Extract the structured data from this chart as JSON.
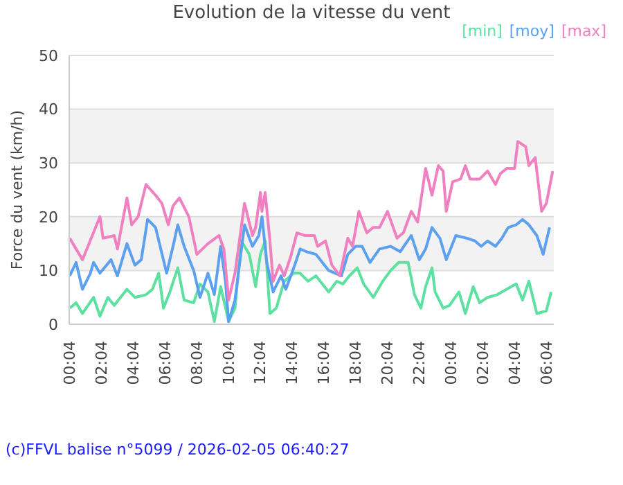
{
  "chart_data": {
    "type": "line",
    "title": "Evolution de la vitesse du vent",
    "ylabel": "Force du vent (km/h)",
    "legend": "top right",
    "grid": "y",
    "marker": "none",
    "line_style": "solid",
    "xlim": [
      "2026-02-04T00:04",
      "2026-02-05T06:34"
    ],
    "xticks": [
      {
        "value": "2026-02-04T00:04",
        "label": "00:04"
      },
      {
        "value": "2026-02-04T02:04",
        "label": "02:04"
      },
      {
        "value": "2026-02-04T04:04",
        "label": "04:04"
      },
      {
        "value": "2026-02-04T06:04",
        "label": "06:04"
      },
      {
        "value": "2026-02-04T08:04",
        "label": "08:04"
      },
      {
        "value": "2026-02-04T10:04",
        "label": "10:04"
      },
      {
        "value": "2026-02-04T12:04",
        "label": "12:04"
      },
      {
        "value": "2026-02-04T14:04",
        "label": "14:04"
      },
      {
        "value": "2026-02-04T16:04",
        "label": "16:04"
      },
      {
        "value": "2026-02-04T18:04",
        "label": "18:04"
      },
      {
        "value": "2026-02-04T20:04",
        "label": "20:04"
      },
      {
        "value": "2026-02-04T22:04",
        "label": "22:04"
      },
      {
        "value": "2026-02-05T00:04",
        "label": "00:04"
      },
      {
        "value": "2026-02-05T02:04",
        "label": "02:04"
      },
      {
        "value": "2026-02-05T04:04",
        "label": "04:04"
      },
      {
        "value": "2026-02-05T06:04",
        "label": "06:04"
      }
    ],
    "ylim": [
      0,
      50
    ],
    "yticks": [
      0,
      10,
      20,
      30,
      40,
      50
    ],
    "annotations": [
      "(c)FFVL balise n°5099 / 2026-02-05 06:40:27"
    ],
    "series": [
      {
        "name": "[min]",
        "color": "#5ee0a0",
        "x": [
          "2026-02-04T00:06",
          "2026-02-04T00:30",
          "2026-02-04T00:54",
          "2026-02-04T01:36",
          "2026-02-04T02:00",
          "2026-02-04T02:30",
          "2026-02-04T02:54",
          "2026-02-04T03:42",
          "2026-02-04T04:12",
          "2026-02-04T04:54",
          "2026-02-04T05:18",
          "2026-02-04T05:42",
          "2026-02-04T06:00",
          "2026-02-04T06:24",
          "2026-02-04T06:54",
          "2026-02-04T07:18",
          "2026-02-04T07:54",
          "2026-02-04T08:18",
          "2026-02-04T08:48",
          "2026-02-04T09:12",
          "2026-02-04T09:36",
          "2026-02-04T10:06",
          "2026-02-04T10:30",
          "2026-02-04T10:54",
          "2026-02-04T11:24",
          "2026-02-04T11:48",
          "2026-02-04T12:06",
          "2026-02-04T12:24",
          "2026-02-04T12:42",
          "2026-02-04T13:06",
          "2026-02-04T13:36",
          "2026-02-04T14:12",
          "2026-02-04T14:36",
          "2026-02-04T15:06",
          "2026-02-04T15:36",
          "2026-02-04T16:00",
          "2026-02-04T16:24",
          "2026-02-04T16:54",
          "2026-02-04T17:18",
          "2026-02-04T17:42",
          "2026-02-04T18:12",
          "2026-02-04T18:36",
          "2026-02-04T19:12",
          "2026-02-04T19:48",
          "2026-02-04T20:18",
          "2026-02-04T20:48",
          "2026-02-04T21:24",
          "2026-02-04T21:48",
          "2026-02-04T22:12",
          "2026-02-04T22:30",
          "2026-02-04T22:54",
          "2026-02-04T23:06",
          "2026-02-04T23:36",
          "2026-02-05T00:00",
          "2026-02-05T00:36",
          "2026-02-05T01:00",
          "2026-02-05T01:30",
          "2026-02-05T01:54",
          "2026-02-05T02:24",
          "2026-02-05T03:00",
          "2026-02-05T03:36",
          "2026-02-05T04:12",
          "2026-02-05T04:36",
          "2026-02-05T05:00",
          "2026-02-05T05:30",
          "2026-02-05T06:06",
          "2026-02-05T06:24"
        ],
        "values": [
          3,
          4,
          2,
          5,
          1.5,
          5,
          3.5,
          6.5,
          5,
          5.5,
          6.5,
          9.5,
          3,
          6,
          10.5,
          4.5,
          4,
          7.5,
          6,
          0.5,
          7,
          0.5,
          3,
          15.5,
          13,
          7,
          13,
          15.5,
          2,
          3,
          8,
          9.5,
          9.5,
          8,
          9,
          7.5,
          6,
          8,
          7.5,
          9,
          10.5,
          7.5,
          5,
          8,
          10,
          11.5,
          11.5,
          5.5,
          3,
          7,
          10.5,
          6,
          3,
          3.5,
          6,
          2,
          7,
          4,
          5,
          5.5,
          6.5,
          7.5,
          4.5,
          8,
          2,
          2.5,
          6
        ]
      },
      {
        "name": "[moy]",
        "color": "#5ca0f0",
        "x": [
          "2026-02-04T00:06",
          "2026-02-04T00:30",
          "2026-02-04T00:54",
          "2026-02-04T01:24",
          "2026-02-04T01:36",
          "2026-02-04T02:00",
          "2026-02-04T02:42",
          "2026-02-04T03:06",
          "2026-02-04T03:42",
          "2026-02-04T04:12",
          "2026-02-04T04:36",
          "2026-02-04T05:00",
          "2026-02-04T05:30",
          "2026-02-04T06:12",
          "2026-02-04T06:36",
          "2026-02-04T06:54",
          "2026-02-04T07:18",
          "2026-02-04T07:54",
          "2026-02-04T08:18",
          "2026-02-04T08:48",
          "2026-02-04T09:12",
          "2026-02-04T09:36",
          "2026-02-04T09:54",
          "2026-02-04T10:06",
          "2026-02-04T10:30",
          "2026-02-04T11:06",
          "2026-02-04T11:36",
          "2026-02-04T12:00",
          "2026-02-04T12:12",
          "2026-02-04T12:30",
          "2026-02-04T12:54",
          "2026-02-04T13:24",
          "2026-02-04T13:42",
          "2026-02-04T14:12",
          "2026-02-04T14:36",
          "2026-02-04T15:00",
          "2026-02-04T15:36",
          "2026-02-04T16:00",
          "2026-02-04T16:24",
          "2026-02-04T17:12",
          "2026-02-04T17:36",
          "2026-02-04T18:06",
          "2026-02-04T18:30",
          "2026-02-04T19:00",
          "2026-02-04T19:36",
          "2026-02-04T20:18",
          "2026-02-04T20:54",
          "2026-02-04T21:36",
          "2026-02-04T22:06",
          "2026-02-04T22:30",
          "2026-02-04T22:54",
          "2026-02-04T23:24",
          "2026-02-04T23:48",
          "2026-02-05T00:24",
          "2026-02-05T01:06",
          "2026-02-05T01:36",
          "2026-02-05T02:00",
          "2026-02-05T02:24",
          "2026-02-05T02:54",
          "2026-02-05T03:18",
          "2026-02-05T03:42",
          "2026-02-05T04:12",
          "2026-02-05T04:36",
          "2026-02-05T05:00",
          "2026-02-05T05:30",
          "2026-02-05T05:54",
          "2026-02-05T06:18"
        ],
        "values": [
          9,
          11.5,
          6.5,
          9.5,
          11.5,
          9.5,
          12,
          9,
          15,
          11,
          12,
          19.5,
          18,
          9.5,
          14.5,
          18.5,
          14.5,
          10,
          5,
          9.5,
          5.5,
          14.5,
          8,
          0.5,
          4.5,
          18.5,
          14.5,
          16.5,
          20,
          11.5,
          6,
          9,
          6.5,
          10.5,
          14,
          13.5,
          13,
          11.5,
          10,
          9,
          13,
          14.5,
          14.5,
          11.5,
          14,
          14.5,
          13.5,
          16.5,
          12,
          14,
          18,
          16,
          12,
          16.5,
          16,
          15.5,
          14.5,
          15.5,
          14.5,
          16,
          18,
          18.5,
          19.5,
          18.5,
          16.5,
          13,
          18
        ]
      },
      {
        "name": "[max]",
        "color": "#f080c0",
        "x": [
          "2026-02-04T00:06",
          "2026-02-04T00:54",
          "2026-02-04T02:00",
          "2026-02-04T02:12",
          "2026-02-04T02:54",
          "2026-02-04T03:06",
          "2026-02-04T03:42",
          "2026-02-04T04:00",
          "2026-02-04T04:24",
          "2026-02-04T04:54",
          "2026-02-04T05:30",
          "2026-02-04T05:54",
          "2026-02-04T06:18",
          "2026-02-04T06:36",
          "2026-02-04T07:00",
          "2026-02-04T07:36",
          "2026-02-04T08:06",
          "2026-02-04T08:48",
          "2026-02-04T09:30",
          "2026-02-04T09:48",
          "2026-02-04T10:06",
          "2026-02-04T10:30",
          "2026-02-04T11:06",
          "2026-02-04T11:36",
          "2026-02-04T11:48",
          "2026-02-04T12:06",
          "2026-02-04T12:12",
          "2026-02-04T12:24",
          "2026-02-04T12:42",
          "2026-02-04T12:54",
          "2026-02-04T13:18",
          "2026-02-04T13:36",
          "2026-02-04T14:00",
          "2026-02-04T14:24",
          "2026-02-04T14:54",
          "2026-02-04T15:30",
          "2026-02-04T15:42",
          "2026-02-04T16:12",
          "2026-02-04T16:36",
          "2026-02-04T17:06",
          "2026-02-04T17:36",
          "2026-02-04T17:54",
          "2026-02-04T18:18",
          "2026-02-04T18:48",
          "2026-02-04T19:12",
          "2026-02-04T19:36",
          "2026-02-04T20:06",
          "2026-02-04T20:42",
          "2026-02-04T21:06",
          "2026-02-04T21:36",
          "2026-02-04T22:00",
          "2026-02-04T22:12",
          "2026-02-04T22:30",
          "2026-02-04T22:54",
          "2026-02-04T23:18",
          "2026-02-04T23:36",
          "2026-02-04T23:48",
          "2026-02-05T00:12",
          "2026-02-05T00:42",
          "2026-02-05T01:00",
          "2026-02-05T01:18",
          "2026-02-05T01:54",
          "2026-02-05T02:24",
          "2026-02-05T02:54",
          "2026-02-05T03:12",
          "2026-02-05T03:36",
          "2026-02-05T04:06",
          "2026-02-05T04:18",
          "2026-02-05T04:48",
          "2026-02-05T05:00",
          "2026-02-05T05:24",
          "2026-02-05T05:48",
          "2026-02-05T06:06",
          "2026-02-05T06:30"
        ],
        "values": [
          16,
          12,
          20,
          16,
          16.5,
          14,
          23.5,
          18.5,
          20,
          26,
          24,
          22.5,
          18.5,
          22,
          23.5,
          20,
          13,
          15,
          16.5,
          14,
          4.5,
          9.5,
          22.5,
          16.5,
          18,
          24.5,
          21,
          24.5,
          15.5,
          8,
          11,
          9,
          12.5,
          17,
          16.5,
          16.5,
          14.5,
          15.5,
          11,
          9,
          16,
          14.5,
          21,
          17,
          18,
          18,
          21,
          16,
          17,
          21,
          19,
          23,
          29,
          24,
          29.5,
          28.5,
          21,
          26.5,
          27,
          29.5,
          27,
          27,
          28.5,
          26,
          28,
          29,
          29,
          34,
          33,
          29.5,
          31,
          21,
          22.5,
          28.5
        ]
      }
    ]
  }
}
